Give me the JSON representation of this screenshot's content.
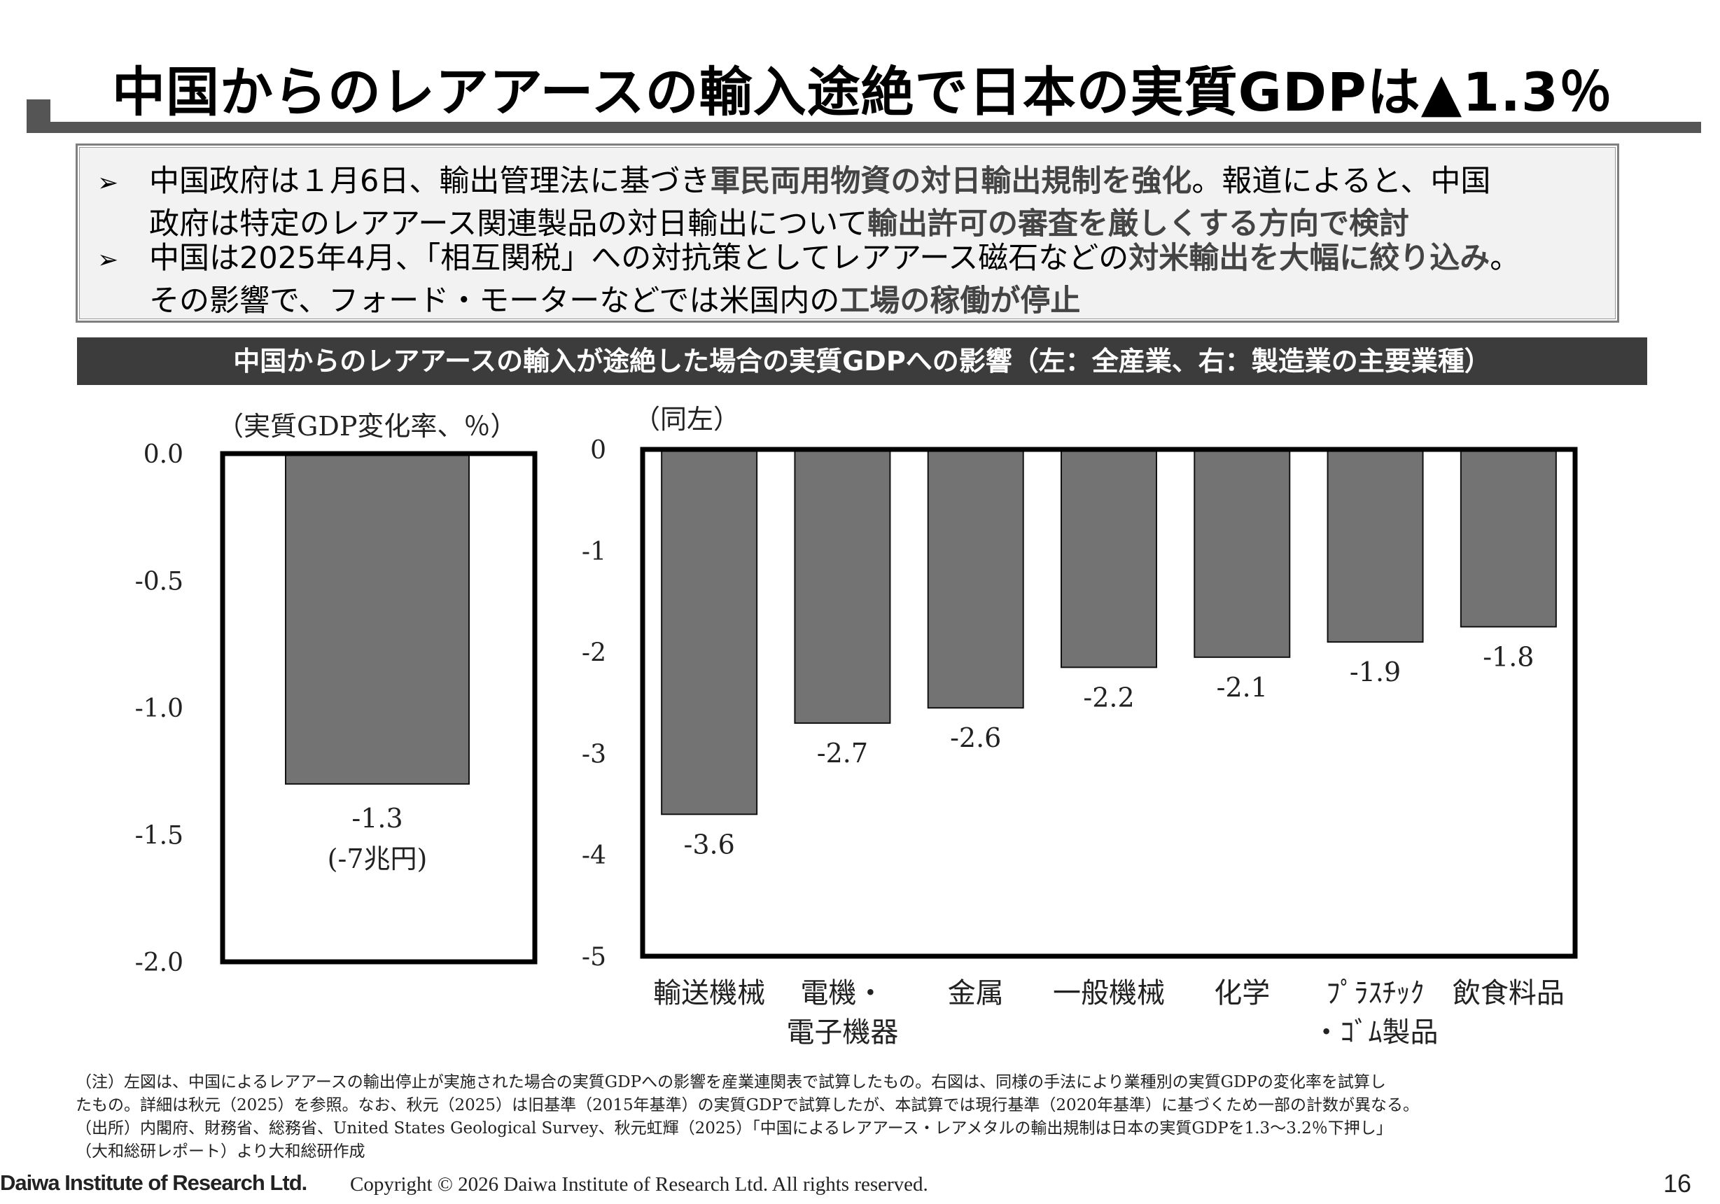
{
  "title": "中国からのレアアースの輸入途絶で日本の実質GDPは▲1.3％",
  "summary": {
    "bullets": [
      {
        "icon": "arrow-bullet-icon",
        "line1_pre": "中国政府は１月6日、輸出管理法に基づき",
        "line1_hl": "軍民両用物資の対日輸出規制を強化",
        "line1_post": "。報道によると、中国",
        "line2_pre": "政府は特定のレアアース関連製品の対日輸出について",
        "line2_hl": "輸出許可の審査を厳しくする方向で検討",
        "line2_post": ""
      },
      {
        "icon": "arrow-bullet-icon",
        "line1_pre": "中国は2025年4月、「相互関税」への対抗策としてレアアース磁石などの",
        "line1_hl": "対米輸出を大幅に絞り込み",
        "line1_post": "。",
        "line2_pre": "その影響で、フォード・モーターなどでは米国内の",
        "line2_hl": "工場の稼働が停止",
        "line2_post": ""
      }
    ]
  },
  "chart_heading": "中国からのレアアースの輸入が途絶した場合の実質GDPへの影響（左：全産業、右：製造業の主要業種）",
  "chart_data": [
    {
      "type": "bar",
      "ylabel": "（実質GDP変化率、％）",
      "ylim": [
        -2.0,
        0.0
      ],
      "yticks": [
        "0.0",
        "-0.5",
        "-1.0",
        "-1.5",
        "-2.0"
      ],
      "ytick_values": [
        0.0,
        -0.5,
        -1.0,
        -1.5,
        -2.0
      ],
      "categories": [
        ""
      ],
      "values": [
        -1.3
      ],
      "data_labels": [
        "-1.3"
      ],
      "annotation": "(-7兆円)",
      "bar_color": "#737373"
    },
    {
      "type": "bar",
      "ylabel": "（同左）",
      "ylim": [
        -5,
        0
      ],
      "yticks": [
        "0",
        "-1",
        "-2",
        "-3",
        "-4",
        "-5"
      ],
      "ytick_values": [
        0,
        -1,
        -2,
        -3,
        -4,
        -5
      ],
      "categories": [
        [
          "輸送機械"
        ],
        [
          "電機・",
          "電子機器"
        ],
        [
          "金属"
        ],
        [
          "一般機械"
        ],
        [
          "化学"
        ],
        [
          "ﾌﾟﾗｽﾁｯｸ",
          "・ｺﾞﾑ製品"
        ],
        [
          "飲食料品"
        ]
      ],
      "values": [
        -3.6,
        -2.7,
        -2.55,
        -2.15,
        -2.05,
        -1.9,
        -1.75
      ],
      "data_labels": [
        "-3.6",
        "-2.7",
        "-2.6",
        "-2.2",
        "-2.1",
        "-1.9",
        "-1.8"
      ],
      "bar_color": "#737373"
    }
  ],
  "notes": [
    "（注）左図は、中国によるレアアースの輸出停止が実施された場合の実質GDPへの影響を産業連関表で試算したもの。右図は、同様の手法により業種別の実質GDPの変化率を試算し",
    "たもの。詳細は秋元（2025）を参照。なお、秋元（2025）は旧基準（2015年基準）の実質GDPで試算したが、本試算では現行基準（2020年基準）に基づくため一部の計数が異なる。",
    "（出所）内閣府、財務省、総務省、United States Geological Survey、秋元虹輝（2025）「中国によるレアアース・レアメタルの輸出規制は日本の実質GDPを1.3～3.2％下押し」",
    "（大和総研レポート）より大和総研作成"
  ],
  "footer": {
    "logo_text": "Daiwa Institute of Research Ltd.",
    "copyright": "Copyright © 2026 Daiwa Institute of Research Ltd. All rights reserved.",
    "page_number": "16"
  },
  "colors": {
    "accent_gray": "#555555",
    "heading_bg": "#3c3c3c",
    "bar": "#737373",
    "box_bg": "#f2f2f2"
  }
}
